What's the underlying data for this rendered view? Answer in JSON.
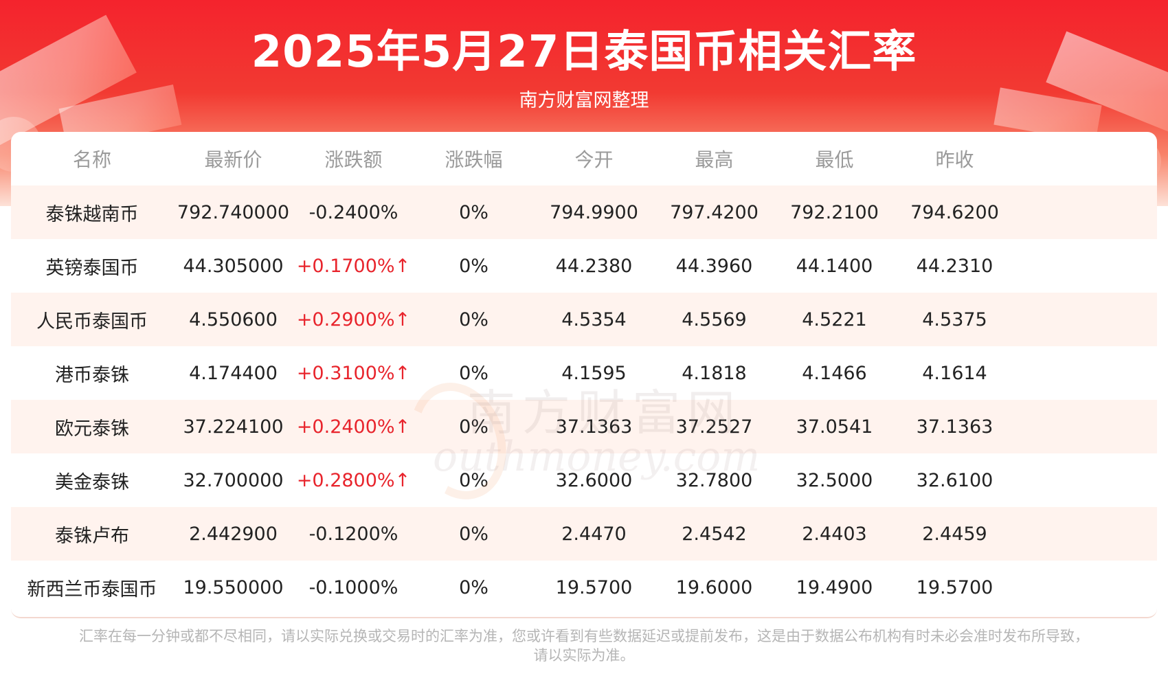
{
  "page": {
    "title": "2025年5月27日泰国币相关汇率",
    "subtitle": "南方财富网整理"
  },
  "table": {
    "headers": [
      "名称",
      "最新价",
      "涨跌额",
      "涨跌幅",
      "今开",
      "最高",
      "最低",
      "昨收"
    ],
    "rows": [
      {
        "name": "泰铢越南币",
        "latest": "792.740000",
        "change": "-0.2400%",
        "change_pct": "0%",
        "open": "794.9900",
        "high": "797.4200",
        "low": "792.2100",
        "prev_close": "794.6200",
        "direction": "down"
      },
      {
        "name": "英镑泰国币",
        "latest": "44.305000",
        "change": "+0.1700%↑",
        "change_pct": "0%",
        "open": "44.2380",
        "high": "44.3960",
        "low": "44.1400",
        "prev_close": "44.2310",
        "direction": "up"
      },
      {
        "name": "人民币泰国币",
        "latest": "4.550600",
        "change": "+0.2900%↑",
        "change_pct": "0%",
        "open": "4.5354",
        "high": "4.5569",
        "low": "4.5221",
        "prev_close": "4.5375",
        "direction": "up"
      },
      {
        "name": "港币泰铢",
        "latest": "4.174400",
        "change": "+0.3100%↑",
        "change_pct": "0%",
        "open": "4.1595",
        "high": "4.1818",
        "low": "4.1466",
        "prev_close": "4.1614",
        "direction": "up"
      },
      {
        "name": "欧元泰铢",
        "latest": "37.224100",
        "change": "+0.2400%↑",
        "change_pct": "0%",
        "open": "37.1363",
        "high": "37.2527",
        "low": "37.0541",
        "prev_close": "37.1363",
        "direction": "up"
      },
      {
        "name": "美金泰铢",
        "latest": "32.700000",
        "change": "+0.2800%↑",
        "change_pct": "0%",
        "open": "32.6000",
        "high": "32.7800",
        "low": "32.5000",
        "prev_close": "32.6100",
        "direction": "up"
      },
      {
        "name": "泰铢卢布",
        "latest": "2.442900",
        "change": "-0.1200%",
        "change_pct": "0%",
        "open": "2.4470",
        "high": "2.4542",
        "low": "2.4403",
        "prev_close": "2.4459",
        "direction": "down"
      },
      {
        "name": "新西兰币泰国币",
        "latest": "19.550000",
        "change": "-0.1000%",
        "change_pct": "0%",
        "open": "19.5700",
        "high": "19.6000",
        "low": "19.4900",
        "prev_close": "19.5700",
        "direction": "down"
      }
    ]
  },
  "watermark": {
    "cn": "南方财富网",
    "en": "outhmoney.com"
  },
  "footer": {
    "line1": "汇率在每一分钟或都不尽相同，请以实际兑换或交易时的汇率为准，您或许看到有些数据延迟或提前发布，这是由于数据公布机构有时未必会准时发布所导致，",
    "line2": "请以实际为准。"
  },
  "colors": {
    "banner_red": "#f4232d",
    "up_red": "#e8242c",
    "alt_row": "#fff3ee",
    "header_gray": "#9a9a9a"
  }
}
